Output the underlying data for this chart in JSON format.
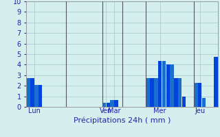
{
  "xlabel": "Précipitations 24h ( mm )",
  "ylim": [
    0,
    10
  ],
  "xlim": [
    -0.5,
    47.5
  ],
  "background_color": "#d5eeee",
  "grid_color": "#b0cccc",
  "tick_label_color": "#2222aa",
  "axis_label_color": "#2222aa",
  "vline_color": "#555566",
  "bars": [
    {
      "x": 0,
      "height": 2.75,
      "color": "#1a6fcc"
    },
    {
      "x": 1,
      "height": 2.75,
      "color": "#0044dd"
    },
    {
      "x": 2,
      "height": 2.1,
      "color": "#1a6fcc"
    },
    {
      "x": 3,
      "height": 2.1,
      "color": "#0044dd"
    },
    {
      "x": 19,
      "height": 0.4,
      "color": "#1a6fcc"
    },
    {
      "x": 20,
      "height": 0.4,
      "color": "#0044dd"
    },
    {
      "x": 21,
      "height": 0.65,
      "color": "#1a6fcc"
    },
    {
      "x": 22,
      "height": 0.65,
      "color": "#0044dd"
    },
    {
      "x": 30,
      "height": 2.75,
      "color": "#1a6fcc"
    },
    {
      "x": 31,
      "height": 2.75,
      "color": "#0044dd"
    },
    {
      "x": 32,
      "height": 2.75,
      "color": "#1a6fcc"
    },
    {
      "x": 33,
      "height": 4.35,
      "color": "#0044dd"
    },
    {
      "x": 34,
      "height": 4.35,
      "color": "#1a6fcc"
    },
    {
      "x": 35,
      "height": 4.0,
      "color": "#0044dd"
    },
    {
      "x": 36,
      "height": 4.0,
      "color": "#1a6fcc"
    },
    {
      "x": 37,
      "height": 2.75,
      "color": "#0044dd"
    },
    {
      "x": 38,
      "height": 2.75,
      "color": "#1a6fcc"
    },
    {
      "x": 39,
      "height": 1.0,
      "color": "#0044dd"
    },
    {
      "x": 42,
      "height": 2.3,
      "color": "#1a6fcc"
    },
    {
      "x": 43,
      "height": 2.3,
      "color": "#0044dd"
    },
    {
      "x": 44,
      "height": 0.85,
      "color": "#1a6fcc"
    },
    {
      "x": 47,
      "height": 4.75,
      "color": "#0044dd"
    }
  ],
  "day_labels": [
    {
      "label": "Lun",
      "x": 1.5
    },
    {
      "label": "Ven",
      "x": 19.5
    },
    {
      "label": "Mar",
      "x": 21.5
    },
    {
      "label": "Mer",
      "x": 33
    },
    {
      "label": "Jeu",
      "x": 43
    }
  ],
  "vlines": [
    9.5,
    18.5,
    23.5,
    29.5,
    41.5
  ],
  "yticks": [
    0,
    1,
    2,
    3,
    4,
    5,
    6,
    7,
    8,
    9,
    10
  ]
}
